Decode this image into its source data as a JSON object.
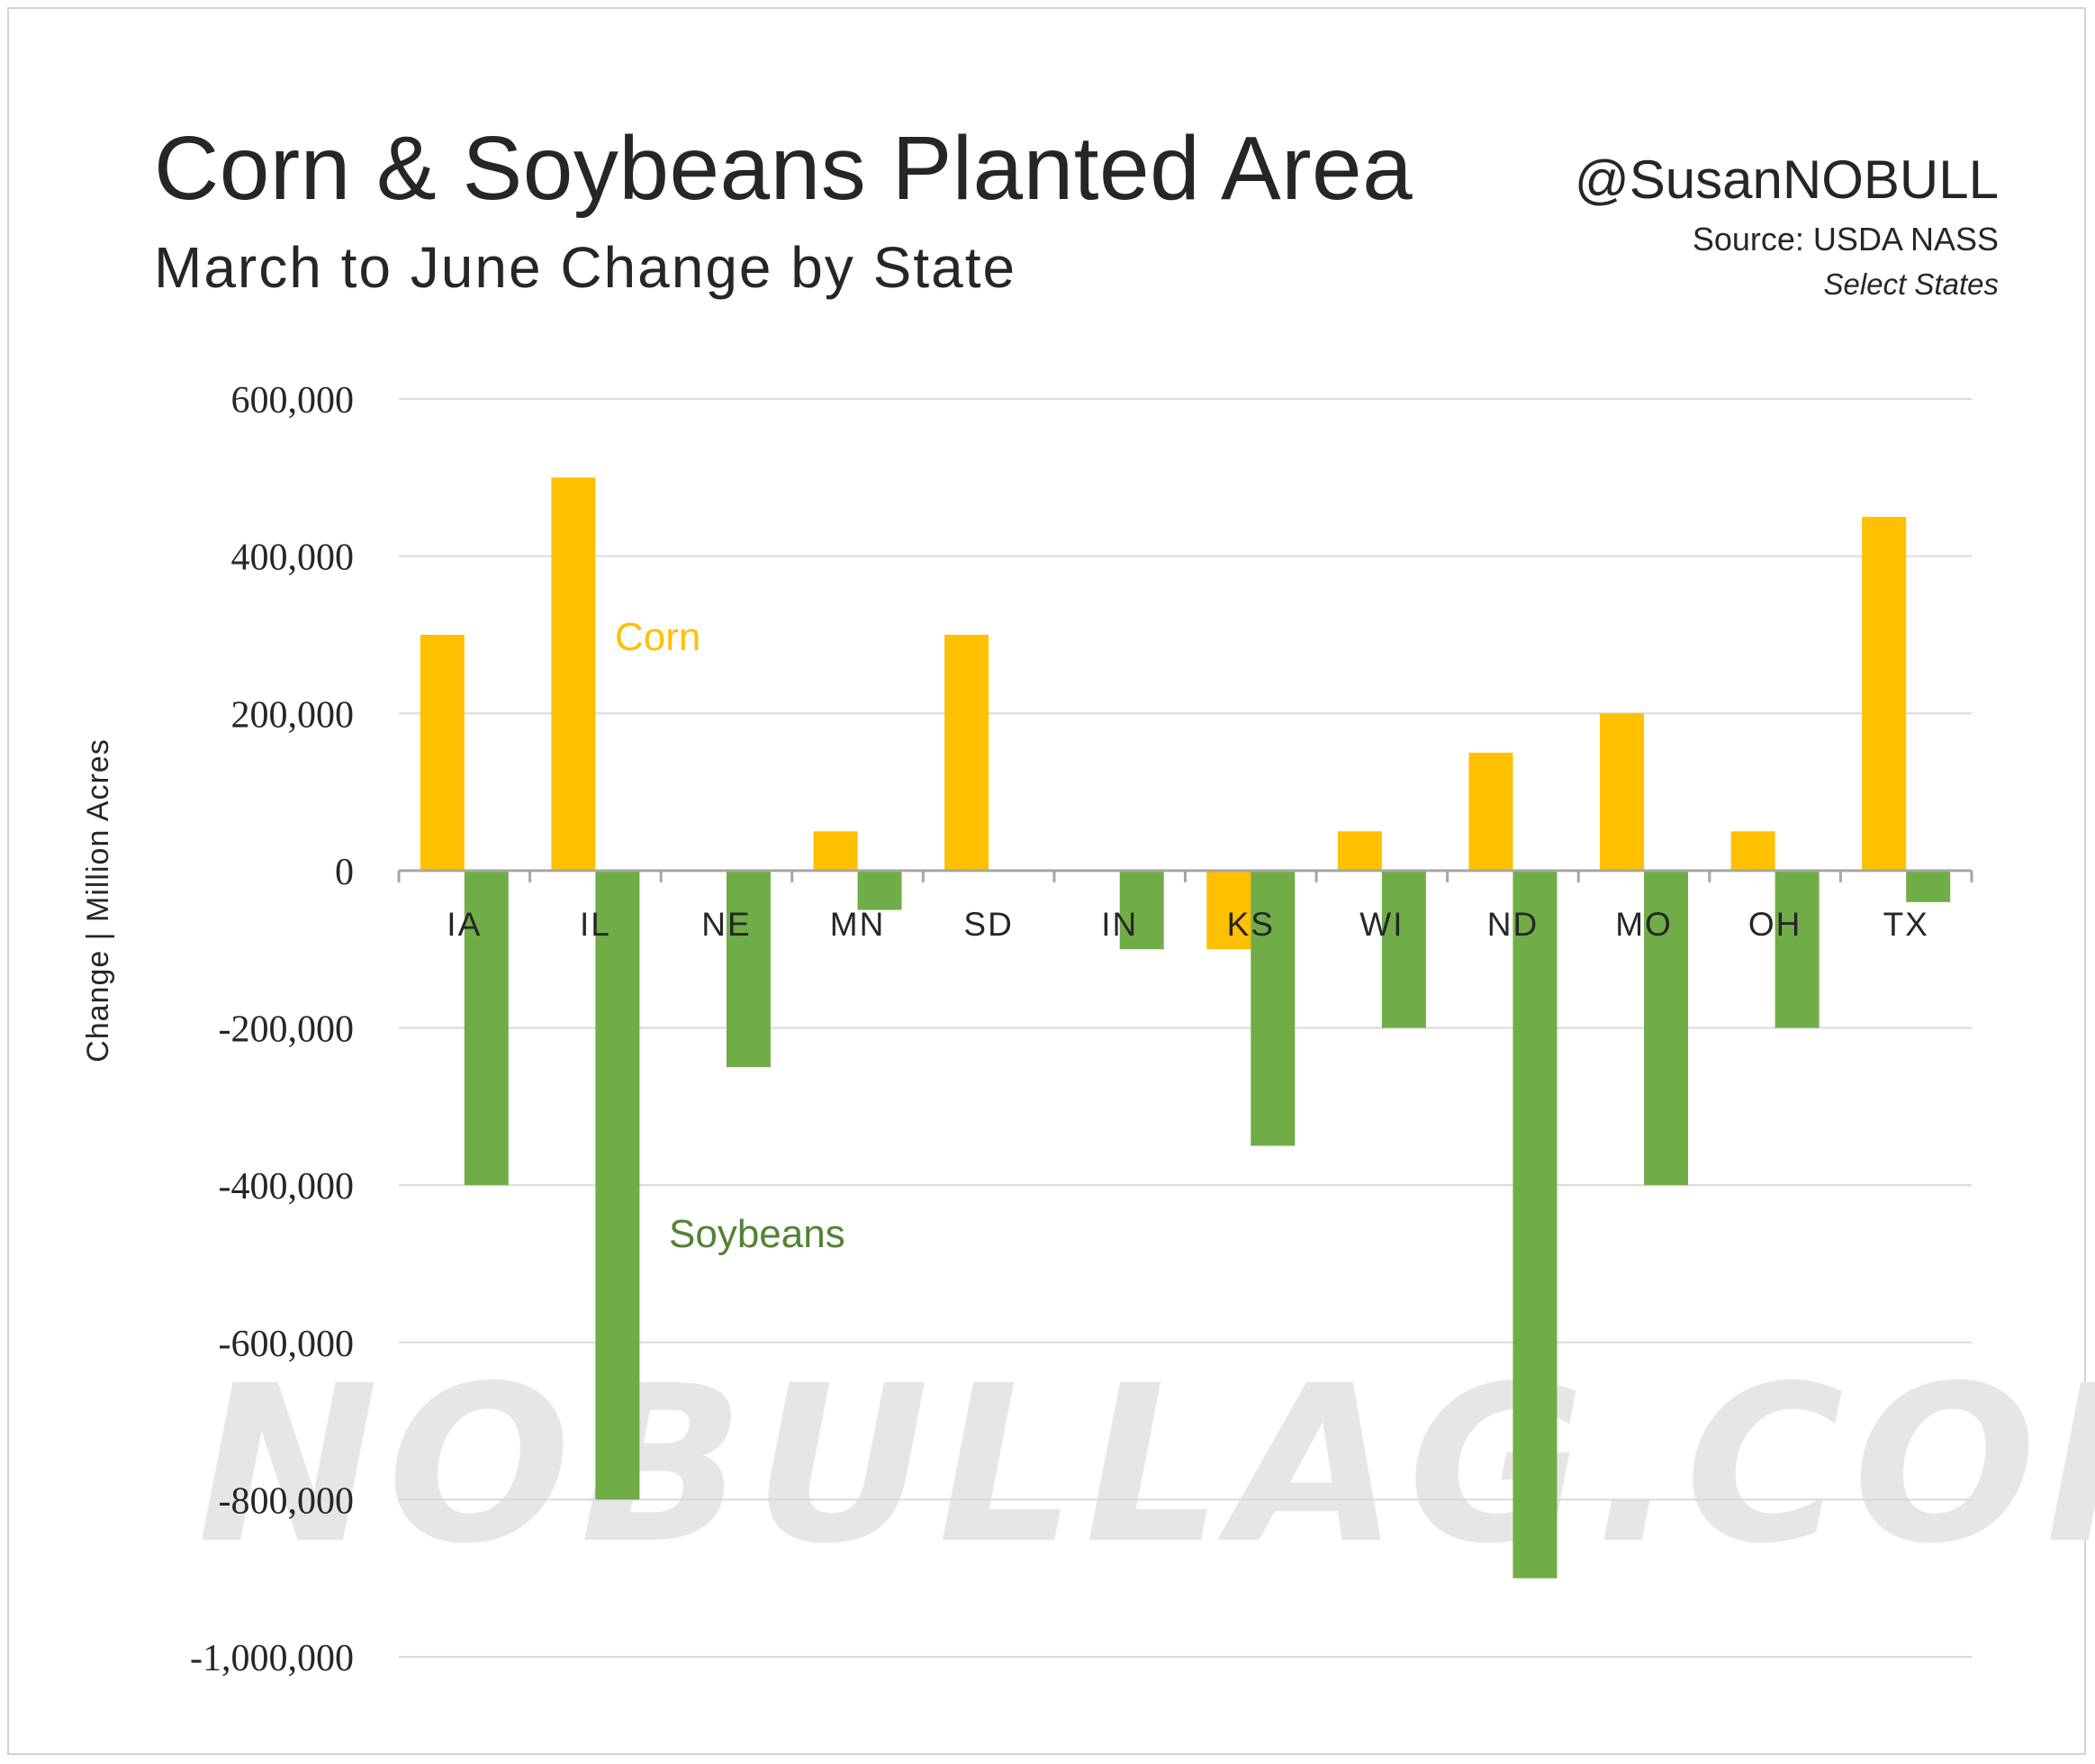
{
  "header": {
    "title": "Corn & Soybeans Planted Area",
    "subtitle": "March to June Change by State",
    "handle": "@SusanNOBULL",
    "source": "Source: USDA NASS",
    "note": "Select States"
  },
  "watermark": "NOBULLAG.COM",
  "colors": {
    "corn": "#FFC000",
    "soybeans": "#70AD47",
    "corn_label": "#FFC000",
    "soybeans_label": "#548235",
    "gridline": "#d9d9d9"
  },
  "chart_data": {
    "type": "bar",
    "categories": [
      "IA",
      "IL",
      "NE",
      "MN",
      "SD",
      "IN",
      "KS",
      "WI",
      "ND",
      "MO",
      "OH",
      "TX"
    ],
    "series": [
      {
        "name": "Corn",
        "values": [
          300000,
          500000,
          0,
          50000,
          300000,
          0,
          -100000,
          50000,
          150000,
          200000,
          50000,
          450000
        ]
      },
      {
        "name": "Soybeans",
        "values": [
          -400000,
          -800000,
          -250000,
          -50000,
          0,
          -100000,
          -350000,
          -200000,
          -900000,
          -400000,
          -200000,
          -40000
        ]
      }
    ],
    "ylabel": "Change | Million Acres",
    "xlabel": "",
    "ylim": [
      -1000000,
      600000
    ],
    "yticks": [
      600000,
      400000,
      200000,
      0,
      -200000,
      -400000,
      -600000,
      -800000,
      -1000000
    ],
    "ytick_labels": [
      "600,000",
      "400,000",
      "200,000",
      "0",
      "-200,000",
      "-400,000",
      "-600,000",
      "-800,000",
      "-1,000,000"
    ],
    "grid": true,
    "legend": "inline labels"
  }
}
